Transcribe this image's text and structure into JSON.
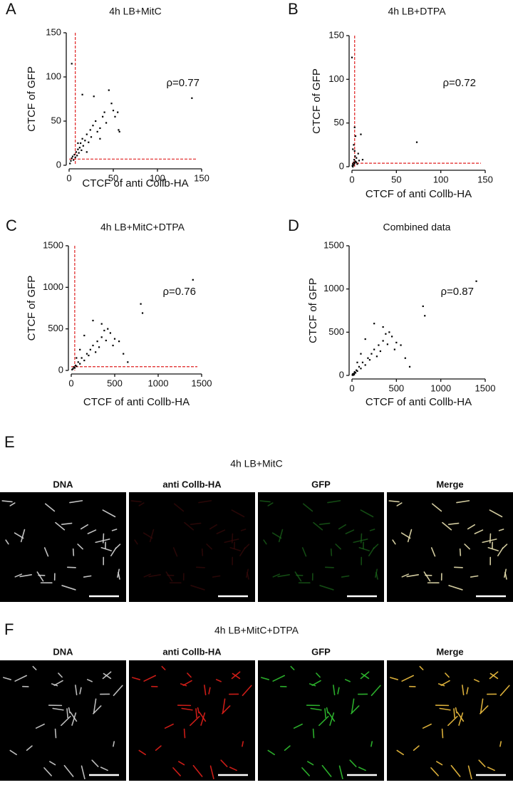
{
  "chart_data": [
    {
      "type": "scatter",
      "panel_label": "A",
      "title": "4h LB+MitC",
      "annotation": "ρ=0.77",
      "xlabel": "CTCF of anti Collb-HA",
      "ylabel": "CTCF of GFP",
      "xlim": [
        0,
        150
      ],
      "ylim": [
        0,
        150
      ],
      "xticks": [
        0,
        50,
        100,
        150
      ],
      "yticks": [
        0,
        50,
        100,
        150
      ],
      "threshold_x": 7,
      "threshold_y": 7,
      "color": "#000000",
      "threshold_color": "#e02020",
      "x": [
        1,
        2,
        3,
        4,
        5,
        6,
        7,
        8,
        9,
        10,
        11,
        12,
        13,
        14,
        15,
        16,
        18,
        20,
        22,
        24,
        25,
        27,
        30,
        32,
        35,
        38,
        40,
        42,
        45,
        48,
        50,
        52,
        55,
        56,
        57,
        3,
        139,
        15,
        28,
        10,
        20,
        35
      ],
      "y": [
        2,
        5,
        8,
        10,
        6,
        12,
        9,
        15,
        11,
        18,
        14,
        20,
        25,
        17,
        30,
        22,
        28,
        35,
        26,
        40,
        32,
        45,
        50,
        38,
        42,
        55,
        60,
        48,
        85,
        70,
        62,
        55,
        60,
        40,
        38,
        115,
        76,
        80,
        78,
        25,
        15,
        30
      ]
    },
    {
      "type": "scatter",
      "panel_label": "B",
      "title": "4h LB+DTPA",
      "annotation": "ρ=0.72",
      "xlabel": "CTCF of anti Collb-HA",
      "ylabel": "CTCF of GFP",
      "xlim": [
        0,
        150
      ],
      "ylim": [
        0,
        150
      ],
      "xticks": [
        0,
        50,
        100,
        150
      ],
      "yticks": [
        0,
        50,
        100,
        150
      ],
      "threshold_x": 3,
      "threshold_y": 4,
      "color": "#000000",
      "threshold_color": "#e02020",
      "x": [
        0.5,
        1,
        1.5,
        2,
        2.5,
        3,
        3.5,
        4,
        5,
        6,
        7,
        8,
        3,
        4,
        10,
        73,
        1,
        2,
        3,
        5,
        2,
        1,
        0,
        12
      ],
      "y": [
        1,
        3,
        2,
        5,
        8,
        4,
        12,
        6,
        10,
        3,
        15,
        7,
        45,
        35,
        37,
        28,
        20,
        25,
        18,
        5,
        2,
        0,
        125,
        8
      ]
    },
    {
      "type": "scatter",
      "panel_label": "C",
      "title": "4h LB+MitC+DTPA",
      "annotation": "ρ=0.76",
      "xlabel": "CTCF of anti Collb-HA",
      "ylabel": "CTCF of GFP",
      "xlim": [
        0,
        1500
      ],
      "ylim": [
        0,
        1500
      ],
      "xticks": [
        0,
        500,
        1000,
        1500
      ],
      "yticks": [
        0,
        500,
        1000,
        1500
      ],
      "threshold_x": 40,
      "threshold_y": 45,
      "color": "#000000",
      "threshold_color": "#e02020",
      "x": [
        10,
        20,
        30,
        40,
        50,
        60,
        80,
        100,
        120,
        150,
        180,
        200,
        220,
        250,
        280,
        300,
        320,
        350,
        380,
        400,
        420,
        450,
        480,
        500,
        550,
        600,
        650,
        800,
        820,
        1400,
        250,
        150,
        350,
        100,
        60
      ],
      "y": [
        10,
        20,
        40,
        30,
        60,
        50,
        100,
        80,
        150,
        120,
        200,
        180,
        250,
        300,
        220,
        350,
        280,
        400,
        480,
        360,
        500,
        450,
        300,
        380,
        350,
        200,
        100,
        800,
        690,
        1090,
        600,
        420,
        560,
        250,
        150
      ]
    },
    {
      "type": "scatter",
      "panel_label": "D",
      "title": "Combined data",
      "annotation": "ρ=0.87",
      "xlabel": "CTCF of anti Collb-HA",
      "ylabel": "CTCF of GFP",
      "xlim": [
        0,
        1500
      ],
      "ylim": [
        0,
        1500
      ],
      "xticks": [
        0,
        500,
        1000,
        1500
      ],
      "yticks": [
        0,
        500,
        1000,
        1500
      ],
      "color": "#000000",
      "x": [
        10,
        20,
        30,
        40,
        50,
        60,
        80,
        100,
        120,
        150,
        180,
        200,
        220,
        250,
        280,
        300,
        320,
        350,
        380,
        400,
        420,
        450,
        480,
        500,
        550,
        600,
        650,
        800,
        820,
        1400,
        250,
        150,
        350,
        100,
        60,
        5,
        10,
        15,
        20,
        25,
        30,
        8,
        12
      ],
      "y": [
        10,
        20,
        40,
        30,
        60,
        50,
        100,
        80,
        150,
        120,
        200,
        180,
        250,
        300,
        220,
        350,
        280,
        400,
        480,
        360,
        500,
        450,
        300,
        380,
        350,
        200,
        100,
        800,
        690,
        1090,
        600,
        420,
        560,
        250,
        150,
        5,
        8,
        12,
        20,
        10,
        30,
        15,
        3
      ]
    }
  ],
  "microscopy": [
    {
      "panel_label": "E",
      "title": "4h LB+MitC",
      "columns": [
        "DNA",
        "anti Collb-HA",
        "GFP",
        "Merge"
      ]
    },
    {
      "panel_label": "F",
      "title": "4h LB+MitC+DTPA",
      "columns": [
        "DNA",
        "anti Collb-HA",
        "GFP",
        "Merge"
      ]
    }
  ]
}
